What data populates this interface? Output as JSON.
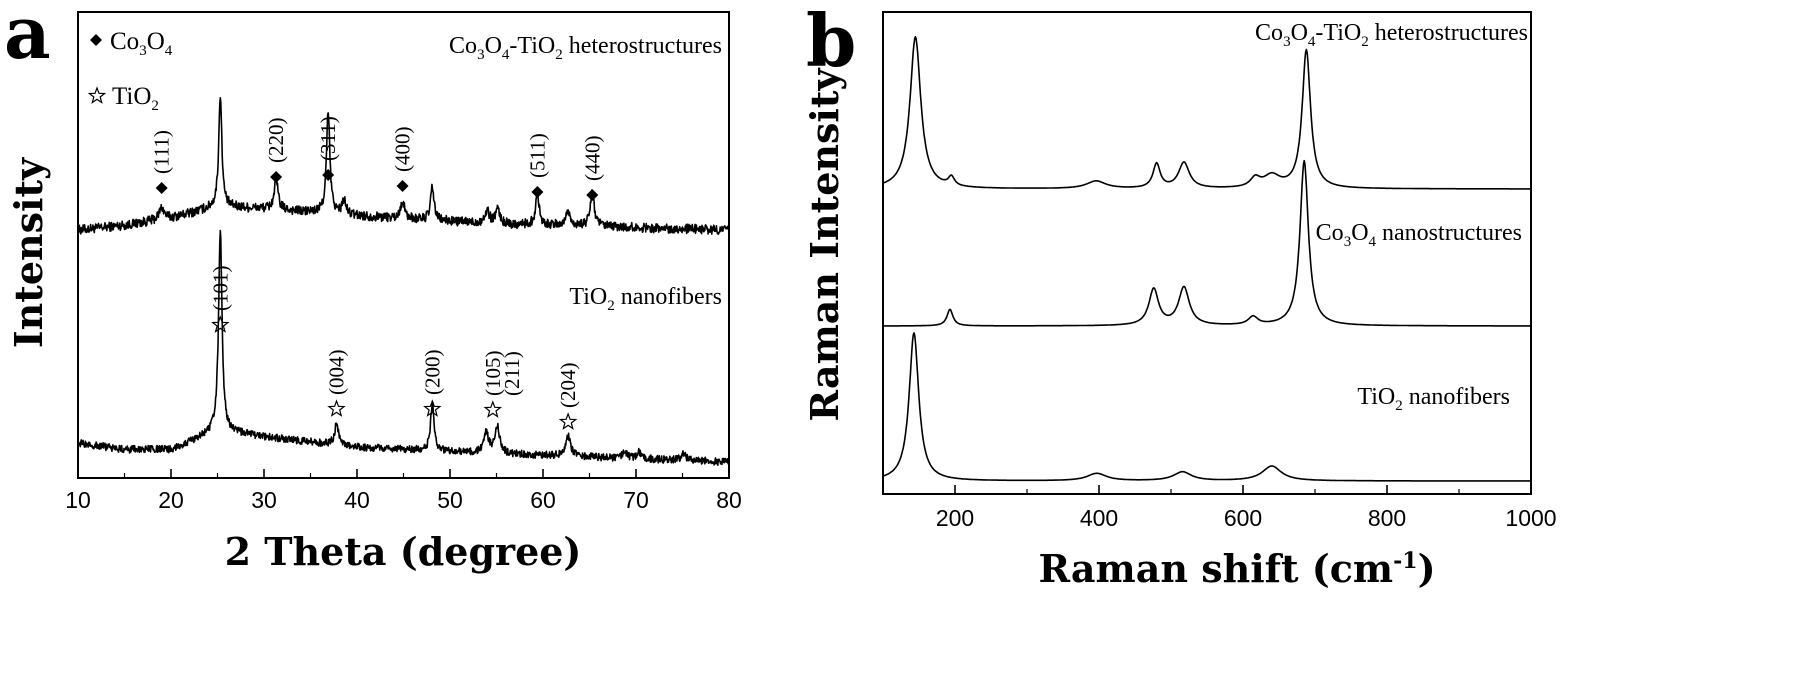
{
  "chart_data": [
    {
      "panel": "a",
      "type": "line",
      "xlabel": "2 Theta (degree)",
      "ylabel": "Intensity",
      "xlim": [
        10,
        80
      ],
      "xticks": [
        10,
        20,
        30,
        40,
        50,
        60,
        70,
        80
      ],
      "legend": {
        "placement": "top-left",
        "entries": [
          {
            "marker": "diamond",
            "base": "Co",
            "sub1": "3",
            "mid": "O",
            "sub2": "4"
          },
          {
            "marker": "star",
            "base": "TiO",
            "sub1": "2"
          }
        ]
      },
      "series": [
        {
          "name": "Co3O4-TiO2 heterostructures",
          "label": {
            "base": "Co",
            "sub1": "3",
            "mid": "O",
            "sub2": "4",
            "sep": "-TiO",
            "sub3": "2",
            "tail": " heterostructures"
          },
          "baseline": [
            [
              10,
              0.0
            ],
            [
              15,
              0.04
            ],
            [
              20,
              0.1
            ],
            [
              25,
              0.2
            ],
            [
              30,
              0.18
            ],
            [
              40,
              0.12
            ],
            [
              55,
              0.05
            ],
            [
              80,
              0.0
            ]
          ],
          "peaks": [
            {
              "x": 19.0,
              "h": 0.1,
              "w": 0.35
            },
            {
              "x": 25.3,
              "h": 0.95,
              "w": 0.2
            },
            {
              "x": 31.3,
              "h": 0.25,
              "w": 0.25
            },
            {
              "x": 36.9,
              "h": 0.85,
              "w": 0.22
            },
            {
              "x": 38.6,
              "h": 0.12,
              "w": 0.25
            },
            {
              "x": 44.9,
              "h": 0.15,
              "w": 0.25
            },
            {
              "x": 48.1,
              "h": 0.28,
              "w": 0.22
            },
            {
              "x": 54.0,
              "h": 0.1,
              "w": 0.3
            },
            {
              "x": 55.1,
              "h": 0.12,
              "w": 0.3
            },
            {
              "x": 59.4,
              "h": 0.25,
              "w": 0.25
            },
            {
              "x": 62.7,
              "h": 0.12,
              "w": 0.3
            },
            {
              "x": 65.3,
              "h": 0.3,
              "w": 0.25
            }
          ],
          "noise": 0.04,
          "annotations": [
            {
              "x": 19.0,
              "marker": "diamond",
              "text": "(111)"
            },
            {
              "x": 31.3,
              "marker": "diamond",
              "text": "(220)"
            },
            {
              "x": 36.9,
              "marker": "diamond",
              "text": "(311)"
            },
            {
              "x": 44.9,
              "marker": "diamond",
              "text": "(400)"
            },
            {
              "x": 59.4,
              "marker": "diamond",
              "text": "(511)"
            },
            {
              "x": 65.3,
              "marker": "diamond",
              "text": "(440)"
            }
          ]
        },
        {
          "name": "TiO2 nanofibers",
          "label": {
            "base": "TiO",
            "sub1": "2",
            "tail": " nanofibers"
          },
          "baseline": [
            [
              10,
              0.18
            ],
            [
              15,
              0.12
            ],
            [
              20,
              0.12
            ],
            [
              25,
              0.3
            ],
            [
              30,
              0.24
            ],
            [
              40,
              0.14
            ],
            [
              55,
              0.08
            ],
            [
              80,
              0.0
            ]
          ],
          "peaks": [
            {
              "x": 25.3,
              "h": 1.9,
              "w": 0.22
            },
            {
              "x": 37.8,
              "h": 0.2,
              "w": 0.25
            },
            {
              "x": 48.1,
              "h": 0.45,
              "w": 0.22
            },
            {
              "x": 53.9,
              "h": 0.2,
              "w": 0.3
            },
            {
              "x": 55.1,
              "h": 0.25,
              "w": 0.3
            },
            {
              "x": 62.7,
              "h": 0.2,
              "w": 0.3
            },
            {
              "x": 68.8,
              "h": 0.06,
              "w": 0.3
            },
            {
              "x": 70.3,
              "h": 0.06,
              "w": 0.3
            },
            {
              "x": 75.1,
              "h": 0.06,
              "w": 0.3
            }
          ],
          "noise": 0.035,
          "annotations": [
            {
              "x": 25.3,
              "marker": "star",
              "text": "(101)"
            },
            {
              "x": 37.8,
              "marker": "star",
              "text": "(004)"
            },
            {
              "x": 48.1,
              "marker": "star",
              "text": "(200)"
            },
            {
              "x": 54.6,
              "marker": "star",
              "text": "(105)",
              "text2": "(211)"
            },
            {
              "x": 62.7,
              "marker": "star",
              "text": "(204)"
            }
          ]
        }
      ]
    },
    {
      "panel": "b",
      "type": "line",
      "xlabel": "Raman shift (cm-1)",
      "xlabel_parts": {
        "main": "Raman shift (cm",
        "sup": "-1",
        "tail": ")"
      },
      "ylabel": "Raman Intensity",
      "xlim": [
        100,
        1000
      ],
      "xticks": [
        200,
        400,
        600,
        800,
        1000
      ],
      "series": [
        {
          "name": "Co3O4-TiO2 heterostructures",
          "label": {
            "base": "Co",
            "sub1": "3",
            "mid": "O",
            "sub2": "4",
            "sep": "-TiO",
            "sub3": "2",
            "tail": " heterostructures"
          },
          "baseline": [
            [
              100,
              0.0
            ],
            [
              1000,
              0.0
            ]
          ],
          "peaks": [
            {
              "x": 145,
              "h": 1.0,
              "w": 9
            },
            {
              "x": 195,
              "h": 0.06,
              "w": 5
            },
            {
              "x": 396,
              "h": 0.05,
              "w": 16
            },
            {
              "x": 480,
              "h": 0.16,
              "w": 6
            },
            {
              "x": 518,
              "h": 0.17,
              "w": 9
            },
            {
              "x": 617,
              "h": 0.06,
              "w": 8
            },
            {
              "x": 640,
              "h": 0.08,
              "w": 14
            },
            {
              "x": 688,
              "h": 0.91,
              "w": 7
            }
          ]
        },
        {
          "name": "Co3O4 nanostructures",
          "label": {
            "base": "Co",
            "sub1": "3",
            "mid": "O",
            "sub2": "4",
            "tail": " nanostructures"
          },
          "baseline": [
            [
              100,
              0.0
            ],
            [
              1000,
              0.0
            ]
          ],
          "peaks": [
            {
              "x": 193,
              "h": 0.1,
              "w": 5
            },
            {
              "x": 476,
              "h": 0.22,
              "w": 8
            },
            {
              "x": 518,
              "h": 0.23,
              "w": 9
            },
            {
              "x": 614,
              "h": 0.05,
              "w": 8
            },
            {
              "x": 685,
              "h": 1.0,
              "w": 7
            }
          ]
        },
        {
          "name": "TiO2 nanofibers",
          "label": {
            "base": "TiO",
            "sub1": "2",
            "tail": " nanofibers"
          },
          "baseline": [
            [
              100,
              0.0
            ],
            [
              1000,
              0.0
            ]
          ],
          "peaks": [
            {
              "x": 143,
              "h": 1.0,
              "w": 8
            },
            {
              "x": 397,
              "h": 0.05,
              "w": 16
            },
            {
              "x": 516,
              "h": 0.06,
              "w": 15
            },
            {
              "x": 640,
              "h": 0.1,
              "w": 16
            }
          ]
        }
      ]
    }
  ]
}
